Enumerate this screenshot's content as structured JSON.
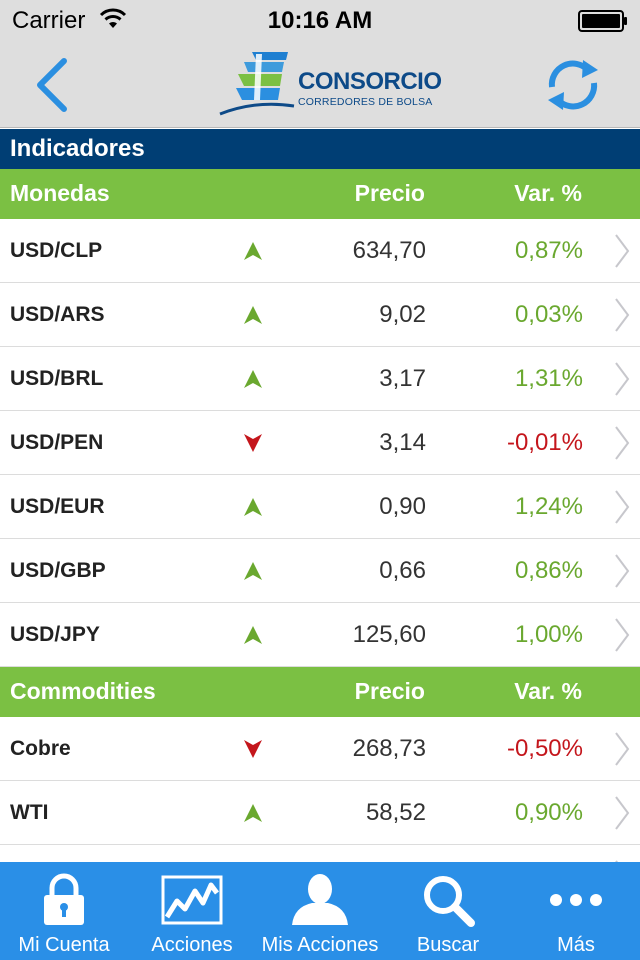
{
  "status_bar": {
    "carrier": "Carrier",
    "time": "10:16 AM"
  },
  "navbar": {
    "logo_name": "CONSORCIO",
    "logo_subtitle": "CORREDORES DE BOLSA",
    "back_icon": "chevron-left-icon",
    "refresh_icon": "refresh-icon"
  },
  "page_title": "Indicadores",
  "colors": {
    "header_blue": "#003e74",
    "group_green": "#7bc043",
    "up_green": "#6aa82f",
    "down_red": "#c4161c",
    "tabbar_blue": "#2a8fe7"
  },
  "monedas": {
    "header": {
      "name": "Monedas",
      "price": "Precio",
      "var": "Var. %"
    },
    "rows": [
      {
        "name": "USD/CLP",
        "direction": "up",
        "price": "634,70",
        "var": "0,87%"
      },
      {
        "name": "USD/ARS",
        "direction": "up",
        "price": "9,02",
        "var": "0,03%"
      },
      {
        "name": "USD/BRL",
        "direction": "up",
        "price": "3,17",
        "var": "1,31%"
      },
      {
        "name": "USD/PEN",
        "direction": "down",
        "price": "3,14",
        "var": "-0,01%"
      },
      {
        "name": "USD/EUR",
        "direction": "up",
        "price": "0,90",
        "var": "1,24%"
      },
      {
        "name": "USD/GBP",
        "direction": "up",
        "price": "0,66",
        "var": "0,86%"
      },
      {
        "name": "USD/JPY",
        "direction": "up",
        "price": "125,60",
        "var": "1,00%"
      }
    ]
  },
  "commodities": {
    "header": {
      "name": "Commodities",
      "price": "Precio",
      "var": "Var. %"
    },
    "rows": [
      {
        "name": "Cobre",
        "direction": "down",
        "price": "268,73",
        "var": "-0,50%"
      },
      {
        "name": "WTI",
        "direction": "up",
        "price": "58,52",
        "var": "0,90%"
      }
    ]
  },
  "tabbar": {
    "items": [
      {
        "label": "Mi Cuenta",
        "icon": "lock-icon"
      },
      {
        "label": "Acciones",
        "icon": "chart-icon"
      },
      {
        "label": "Mis Acciones",
        "icon": "person-icon"
      },
      {
        "label": "Buscar",
        "icon": "search-icon"
      },
      {
        "label": "Más",
        "icon": "more-icon"
      }
    ]
  }
}
